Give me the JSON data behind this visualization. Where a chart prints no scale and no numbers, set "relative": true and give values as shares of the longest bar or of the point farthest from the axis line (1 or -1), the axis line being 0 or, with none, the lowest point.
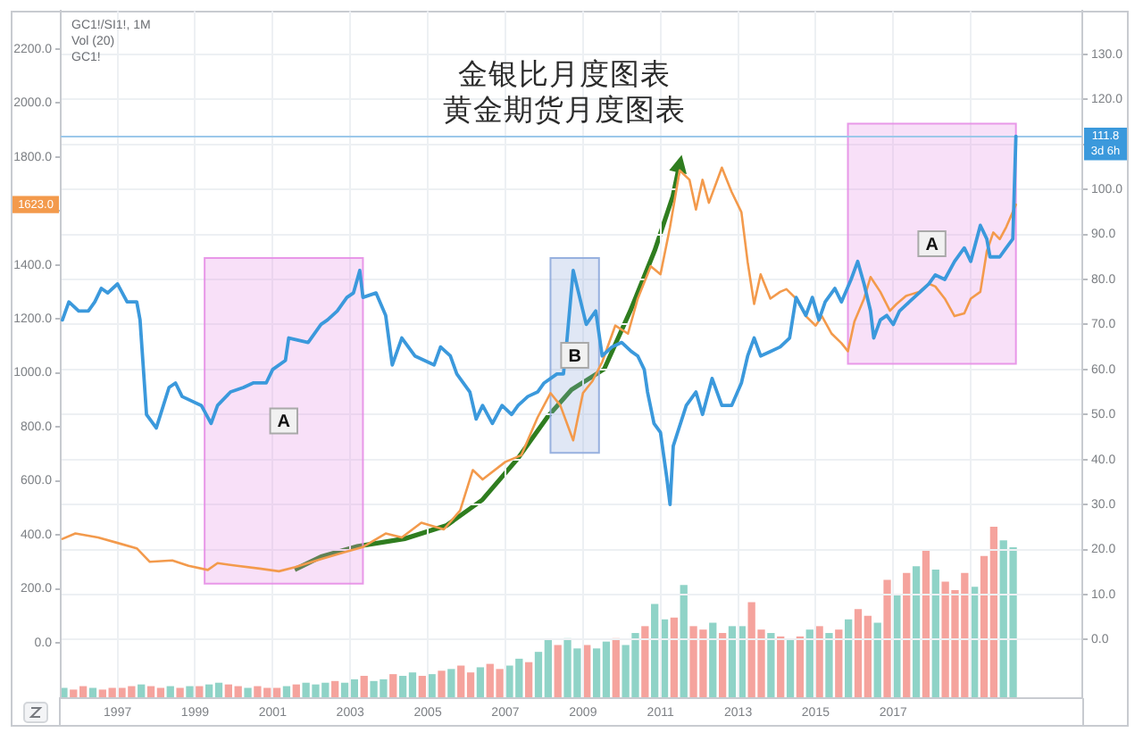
{
  "chart_data": [
    {
      "type": "line",
      "title": "金银比月度图表",
      "subtitle": "黄金期货月度图表",
      "xlim": [
        "1995-07-16",
        "2021-11-16"
      ],
      "xticks": [
        "1997",
        "1999",
        "2001",
        "2003",
        "2005",
        "2007",
        "2009",
        "2011",
        "2013",
        "2015",
        "2017",
        {
          "value": "2019",
          "label": null
        }
      ],
      "ylim": [
        -205,
        2340
      ],
      "yticks": [
        {
          "value": 0,
          "label": "0.0"
        },
        {
          "value": 200,
          "label": "200.0"
        },
        {
          "value": 400,
          "label": "400.0"
        },
        {
          "value": 600,
          "label": "600.0"
        },
        {
          "value": 800,
          "label": "800.0"
        },
        {
          "value": 1000,
          "label": "1000.0"
        },
        {
          "value": 1200,
          "label": "1200.0"
        },
        {
          "value": 1400,
          "label": "1400.0"
        },
        {
          "value": 1600,
          "label": null
        },
        {
          "value": 1800,
          "label": "1800.0"
        },
        {
          "value": 2000,
          "label": "2000.0"
        },
        {
          "value": 2200,
          "label": "2200.0"
        }
      ],
      "y2lim": [
        -13,
        139.6
      ],
      "y2ticks": [
        {
          "value": 0,
          "label": "0.0"
        },
        {
          "value": 10,
          "label": "10.0"
        },
        {
          "value": 20,
          "label": "20.0"
        },
        {
          "value": 30,
          "label": "30.0"
        },
        {
          "value": 40,
          "label": "40.0"
        },
        {
          "value": 50,
          "label": "50.0"
        },
        {
          "value": 60,
          "label": "60.0"
        },
        {
          "value": 70,
          "label": "70.0"
        },
        {
          "value": 80,
          "label": "80.0"
        },
        {
          "value": 90,
          "label": "90.0"
        },
        {
          "value": 100,
          "label": "100.0"
        },
        {
          "value": 110,
          "label": null
        },
        {
          "value": 120,
          "label": "120.0"
        },
        {
          "value": 130,
          "label": "130.0"
        }
      ],
      "grid": true,
      "series": [
        {
          "color": "#f39a4c",
          "x": [
            "1995-08",
            "1995-12",
            "1996-07",
            "1997-01",
            "1997-07",
            "1997-11",
            "1998-06",
            "1998-11",
            "1999-05",
            "1999-08",
            "2000-02",
            "2000-09",
            "2001-03",
            "2001-08",
            "2002-04",
            "2002-11",
            "2003-05",
            "2003-12",
            "2004-05",
            "2004-11",
            "2005-06",
            "2005-11",
            "2006-03",
            "2006-06",
            "2007-01",
            "2007-06",
            "2007-11",
            "2008-03",
            "2008-06",
            "2008-10",
            "2009-01",
            "2009-04",
            "2009-07",
            "2009-11",
            "2010-03",
            "2010-06",
            "2010-10",
            "2011-01",
            "2011-04",
            "2011-07",
            "2011-10",
            "2011-12",
            "2012-02",
            "2012-04",
            "2012-08",
            "2012-11",
            "2013-02",
            "2013-04",
            "2013-06",
            "2013-08",
            "2013-11",
            "2014-02",
            "2014-04",
            "2014-07",
            "2014-10",
            "2015-01",
            "2015-03",
            "2015-06",
            "2015-09",
            "2015-11",
            "2016-01",
            "2016-04",
            "2016-06",
            "2016-09",
            "2016-12",
            "2017-02",
            "2017-05",
            "2017-09",
            "2017-12",
            "2018-02",
            "2018-05",
            "2018-08",
            "2018-11",
            "2019-01",
            "2019-04",
            "2019-06",
            "2019-08",
            "2019-10",
            "2019-12",
            "2020-03"
          ],
          "values": [
            385,
            405,
            390,
            370,
            350,
            300,
            305,
            285,
            270,
            295,
            285,
            275,
            265,
            280,
            310,
            335,
            355,
            405,
            390,
            445,
            420,
            490,
            640,
            605,
            670,
            695,
            835,
            925,
            880,
            750,
            925,
            970,
            1040,
            1175,
            1145,
            1275,
            1395,
            1365,
            1540,
            1750,
            1715,
            1605,
            1715,
            1630,
            1760,
            1670,
            1595,
            1410,
            1255,
            1365,
            1275,
            1300,
            1310,
            1275,
            1210,
            1175,
            1210,
            1145,
            1110,
            1080,
            1190,
            1275,
            1355,
            1300,
            1230,
            1255,
            1285,
            1300,
            1330,
            1320,
            1275,
            1210,
            1220,
            1275,
            1300,
            1450,
            1520,
            1495,
            1540,
            1623
          ]
        },
        {
          "color": "#3b99dc",
          "axis": "y2",
          "x": [
            "1995-08",
            "1995-10",
            "1996-01",
            "1996-04",
            "1996-06",
            "1996-08",
            "1996-10",
            "1997-01",
            "1997-04",
            "1997-07",
            "1997-08",
            "1997-10",
            "1998-01",
            "1998-05",
            "1998-07",
            "1998-09",
            "1999-03",
            "1999-06",
            "1999-08",
            "1999-12",
            "2000-04",
            "2000-07",
            "2000-11",
            "2001-01",
            "2001-05",
            "2001-06",
            "2001-12",
            "2002-04",
            "2002-06",
            "2002-09",
            "2002-12",
            "2003-02",
            "2003-04",
            "2003-05",
            "2003-09",
            "2003-12",
            "2004-02",
            "2004-05",
            "2004-09",
            "2005-03",
            "2005-05",
            "2005-08",
            "2005-10",
            "2006-02",
            "2006-04",
            "2006-06",
            "2006-09",
            "2006-12",
            "2007-03",
            "2007-05",
            "2007-08",
            "2007-11",
            "2008-01",
            "2008-05",
            "2008-07",
            "2008-08",
            "2008-10",
            "2008-12",
            "2009-02",
            "2009-05",
            "2009-07",
            "2009-10",
            "2010-01",
            "2010-04",
            "2010-06",
            "2010-08",
            "2010-09",
            "2010-11",
            "2011-01",
            "2011-03",
            "2011-04",
            "2011-05",
            "2011-09",
            "2011-12",
            "2012-02",
            "2012-05",
            "2012-08",
            "2012-11",
            "2013-02",
            "2013-04",
            "2013-06",
            "2013-08",
            "2013-11",
            "2014-02",
            "2014-05",
            "2014-07",
            "2014-10",
            "2014-12",
            "2015-02",
            "2015-04",
            "2015-07",
            "2015-09",
            "2015-12",
            "2016-02",
            "2016-04",
            "2016-06",
            "2016-07",
            "2016-09",
            "2016-11",
            "2017-01",
            "2017-03",
            "2017-06",
            "2017-09",
            "2017-12",
            "2018-02",
            "2018-05",
            "2018-08",
            "2018-11",
            "2019-01",
            "2019-04",
            "2019-06",
            "2019-07",
            "2019-10",
            "2019-12",
            "2020-02",
            "2020-03"
          ],
          "values": [
            71,
            75,
            73,
            73,
            75,
            78,
            77,
            79,
            75,
            75,
            71,
            50,
            47,
            56,
            57,
            54,
            52,
            48,
            52,
            55,
            56,
            57,
            57,
            60,
            62,
            67,
            66,
            70,
            71,
            73,
            76,
            77,
            82,
            76,
            77,
            72,
            61,
            67,
            63,
            61,
            65,
            63,
            59,
            55,
            49,
            52,
            48,
            52,
            50,
            52,
            54,
            55,
            57,
            59,
            59,
            66,
            82,
            76,
            70,
            73,
            63,
            65,
            66,
            64,
            63,
            60,
            55,
            48,
            46,
            36,
            30,
            43,
            52,
            55,
            50,
            58,
            52,
            52,
            57,
            63,
            67,
            63,
            64,
            65,
            67,
            76,
            72,
            76,
            71,
            75,
            78,
            75,
            80,
            84,
            79,
            73,
            67,
            71,
            72,
            70,
            73,
            75,
            77,
            79,
            81,
            80,
            84,
            87,
            84,
            92,
            89,
            85,
            85,
            87,
            89,
            111.8
          ]
        }
      ],
      "ref_lines": [
        {
          "axis": "y2",
          "value": 111.8,
          "label": "111.8\n3d 6h",
          "color": "#9cc8ea"
        }
      ],
      "bands": [
        {
          "axis": "x",
          "from": "1999-04",
          "to": "2003-05",
          "label": "A",
          "color": "#e58ee6"
        },
        {
          "axis": "x",
          "from": "2008-03",
          "to": "2009-06",
          "label": "B",
          "color": "#8eaadc"
        },
        {
          "axis": "x",
          "from": "2015-11",
          "to": "2020-03",
          "label": "A",
          "color": "#e58ee6"
        }
      ],
      "annotations": [
        "GC1!/SI1!, 1M",
        "Vol (20)",
        "GC1!",
        {
          "text": "1623.0",
          "y": 1623
        }
      ]
    },
    {
      "type": "bar",
      "relative": true,
      "categories": [
        null,
        null,
        null,
        null,
        null,
        null,
        null,
        null,
        null,
        null,
        null,
        null,
        null,
        null,
        null,
        null,
        null,
        null,
        null,
        null,
        null,
        null,
        null,
        null,
        null,
        null,
        null,
        null,
        null,
        null,
        null,
        null,
        null,
        null,
        null,
        null,
        null,
        null,
        null,
        null,
        null,
        null,
        null,
        null,
        null,
        null,
        null,
        null,
        null,
        null,
        null,
        null,
        null,
        null,
        null,
        null,
        null,
        null,
        null,
        null,
        null,
        null,
        null,
        null,
        null,
        null,
        null,
        null,
        null,
        null,
        null,
        null,
        null,
        null,
        null,
        null,
        null,
        null,
        null,
        null,
        null,
        null,
        null,
        null,
        null,
        null,
        null,
        null,
        null,
        null,
        null,
        null,
        null,
        null,
        null,
        null,
        null,
        null,
        null
      ],
      "values": [
        0.06,
        0.05,
        0.07,
        0.06,
        0.05,
        0.06,
        0.06,
        0.07,
        0.08,
        0.07,
        0.06,
        0.07,
        0.06,
        0.07,
        0.07,
        0.08,
        0.09,
        0.08,
        0.07,
        0.06,
        0.07,
        0.06,
        0.06,
        0.07,
        0.08,
        0.09,
        0.08,
        0.09,
        0.1,
        0.09,
        0.11,
        0.13,
        0.1,
        0.11,
        0.14,
        0.13,
        0.15,
        0.13,
        0.14,
        0.16,
        0.17,
        0.19,
        0.15,
        0.18,
        0.2,
        0.17,
        0.19,
        0.23,
        0.21,
        0.27,
        0.34,
        0.31,
        0.35,
        0.29,
        0.31,
        0.29,
        0.33,
        0.35,
        0.31,
        0.38,
        0.42,
        0.55,
        0.46,
        0.47,
        0.66,
        0.42,
        0.4,
        0.44,
        0.38,
        0.42,
        0.42,
        0.56,
        0.4,
        0.38,
        0.36,
        0.34,
        0.36,
        0.4,
        0.42,
        0.38,
        0.4,
        0.46,
        0.52,
        0.48,
        0.44,
        0.69,
        0.6,
        0.73,
        0.77,
        0.86,
        0.75,
        0.68,
        0.63,
        0.73,
        0.65,
        0.83,
        1,
        0.92,
        0.88
      ],
      "colors": [
        "#8fd3c7",
        "#f5a39d",
        "#f5a39d",
        "#8fd3c7",
        "#f5a39d",
        "#f5a39d",
        "#f5a39d",
        "#f5a39d",
        "#8fd3c7",
        "#f5a39d",
        "#f5a39d",
        "#8fd3c7",
        "#f5a39d",
        "#8fd3c7",
        "#f5a39d",
        "#8fd3c7",
        "#8fd3c7",
        "#f5a39d",
        "#f5a39d",
        "#8fd3c7",
        "#f5a39d",
        "#f5a39d",
        "#f5a39d",
        "#8fd3c7",
        "#f5a39d",
        "#8fd3c7",
        "#8fd3c7",
        "#8fd3c7",
        "#f5a39d",
        "#8fd3c7",
        "#8fd3c7",
        "#f5a39d",
        "#8fd3c7",
        "#8fd3c7",
        "#f5a39d",
        "#8fd3c7",
        "#8fd3c7",
        "#f5a39d",
        "#8fd3c7",
        "#f5a39d",
        "#8fd3c7",
        "#f5a39d",
        "#f5a39d",
        "#8fd3c7",
        "#f5a39d",
        "#f5a39d",
        "#8fd3c7",
        "#8fd3c7",
        "#f5a39d",
        "#8fd3c7",
        "#8fd3c7",
        "#f5a39d",
        "#8fd3c7",
        "#8fd3c7",
        "#f5a39d",
        "#8fd3c7",
        "#8fd3c7",
        "#f5a39d",
        "#8fd3c7",
        "#8fd3c7",
        "#f5a39d",
        "#8fd3c7",
        "#8fd3c7",
        "#f5a39d",
        "#8fd3c7",
        "#f5a39d",
        "#f5a39d",
        "#8fd3c7",
        "#f5a39d",
        "#8fd3c7",
        "#8fd3c7",
        "#f5a39d",
        "#f5a39d",
        "#8fd3c7",
        "#f5a39d",
        "#8fd3c7",
        "#f5a39d",
        "#8fd3c7",
        "#f5a39d",
        "#8fd3c7",
        "#f5a39d",
        "#8fd3c7",
        "#f5a39d",
        "#f5a39d",
        "#8fd3c7",
        "#f5a39d",
        "#8fd3c7",
        "#f5a39d",
        "#8fd3c7",
        "#f5a39d",
        "#8fd3c7",
        "#f5a39d",
        "#f5a39d",
        "#f5a39d",
        "#8fd3c7",
        "#f5a39d",
        "#f5a39d",
        "#8fd3c7",
        "#8fd3c7"
      ]
    }
  ]
}
